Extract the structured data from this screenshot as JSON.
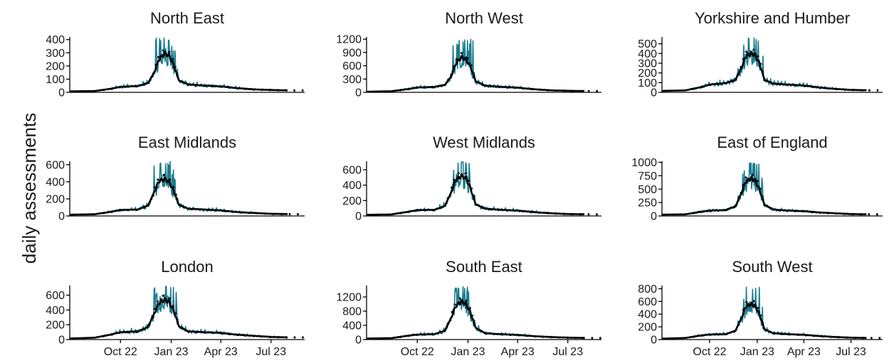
{
  "colors": {
    "raw": "#1b7c8f",
    "smooth": "#000000",
    "predicted": "#000000"
  },
  "chart_data": {
    "type": "line",
    "layout": "facet-grid-3x3",
    "ylabel": "daily assessments",
    "x_axis": {
      "range": [
        "2022-07-01",
        "2023-08-31"
      ],
      "ticks": [
        {
          "date": "2022-10-01",
          "label": "Oct 22"
        },
        {
          "date": "2023-01-01",
          "label": "Jan 23"
        },
        {
          "date": "2023-04-01",
          "label": "Apr 23"
        },
        {
          "date": "2023-07-01",
          "label": "Jul 23"
        }
      ],
      "tick_labels_on_bottom_row_only": true
    },
    "grid": false,
    "panels": [
      {
        "title": "North East",
        "yticks": [
          0,
          100,
          200,
          300,
          400
        ],
        "ylim": [
          0,
          420
        ],
        "trend": [
          [
            "2022-07-01",
            8
          ],
          [
            "2022-08-15",
            10
          ],
          [
            "2022-09-15",
            28
          ],
          [
            "2022-10-01",
            42
          ],
          [
            "2022-11-01",
            48
          ],
          [
            "2022-11-20",
            70
          ],
          [
            "2022-12-01",
            150
          ],
          [
            "2022-12-10",
            250
          ],
          [
            "2022-12-20",
            295
          ],
          [
            "2022-12-28",
            280
          ],
          [
            "2023-01-05",
            210
          ],
          [
            "2023-01-15",
            90
          ],
          [
            "2023-02-01",
            60
          ],
          [
            "2023-03-01",
            52
          ],
          [
            "2023-04-01",
            45
          ],
          [
            "2023-05-01",
            32
          ],
          [
            "2023-06-01",
            22
          ],
          [
            "2023-07-01",
            18
          ],
          [
            "2023-07-31",
            15
          ]
        ],
        "peak": 420,
        "series_end": "2023-07-31",
        "predicted_end": "2023-08-31"
      },
      {
        "title": "North West",
        "yticks": [
          0,
          300,
          600,
          900,
          1200
        ],
        "ylim": [
          0,
          1250
        ],
        "trend": [
          [
            "2022-07-01",
            15
          ],
          [
            "2022-08-15",
            25
          ],
          [
            "2022-09-15",
            75
          ],
          [
            "2022-10-01",
            110
          ],
          [
            "2022-11-01",
            120
          ],
          [
            "2022-11-20",
            170
          ],
          [
            "2022-12-01",
            350
          ],
          [
            "2022-12-10",
            650
          ],
          [
            "2022-12-20",
            790
          ],
          [
            "2022-12-28",
            750
          ],
          [
            "2023-01-05",
            600
          ],
          [
            "2023-01-15",
            250
          ],
          [
            "2023-02-01",
            150
          ],
          [
            "2023-03-01",
            125
          ],
          [
            "2023-04-01",
            105
          ],
          [
            "2023-05-01",
            70
          ],
          [
            "2023-06-01",
            45
          ],
          [
            "2023-07-01",
            35
          ],
          [
            "2023-07-31",
            30
          ]
        ],
        "peak": 1220,
        "series_end": "2023-07-31",
        "predicted_end": "2023-08-31"
      },
      {
        "title": "Yorkshire and Humber",
        "yticks": [
          0,
          100,
          200,
          300,
          400,
          500
        ],
        "ylim": [
          0,
          570
        ],
        "trend": [
          [
            "2022-07-01",
            15
          ],
          [
            "2022-08-15",
            20
          ],
          [
            "2022-09-15",
            55
          ],
          [
            "2022-10-01",
            80
          ],
          [
            "2022-11-01",
            95
          ],
          [
            "2022-11-20",
            130
          ],
          [
            "2022-12-01",
            250
          ],
          [
            "2022-12-10",
            370
          ],
          [
            "2022-12-20",
            400
          ],
          [
            "2022-12-28",
            385
          ],
          [
            "2023-01-05",
            300
          ],
          [
            "2023-01-15",
            130
          ],
          [
            "2023-02-01",
            90
          ],
          [
            "2023-03-01",
            80
          ],
          [
            "2023-04-01",
            70
          ],
          [
            "2023-05-01",
            50
          ],
          [
            "2023-06-01",
            35
          ],
          [
            "2023-07-01",
            25
          ],
          [
            "2023-07-31",
            22
          ]
        ],
        "peak": 560,
        "series_end": "2023-07-31",
        "predicted_end": "2023-08-31"
      },
      {
        "title": "East Midlands",
        "yticks": [
          0,
          200,
          400,
          600
        ],
        "ylim": [
          0,
          640
        ],
        "trend": [
          [
            "2022-07-01",
            15
          ],
          [
            "2022-08-15",
            20
          ],
          [
            "2022-09-15",
            50
          ],
          [
            "2022-10-01",
            70
          ],
          [
            "2022-11-01",
            75
          ],
          [
            "2022-11-20",
            120
          ],
          [
            "2022-12-01",
            280
          ],
          [
            "2022-12-10",
            410
          ],
          [
            "2022-12-20",
            430
          ],
          [
            "2022-12-28",
            400
          ],
          [
            "2023-01-05",
            300
          ],
          [
            "2023-01-15",
            130
          ],
          [
            "2023-02-01",
            85
          ],
          [
            "2023-03-01",
            75
          ],
          [
            "2023-04-01",
            65
          ],
          [
            "2023-05-01",
            45
          ],
          [
            "2023-06-01",
            35
          ],
          [
            "2023-07-01",
            25
          ],
          [
            "2023-07-31",
            22
          ]
        ],
        "peak": 640,
        "series_end": "2023-07-31",
        "predicted_end": "2023-08-31"
      },
      {
        "title": "West Midlands",
        "yticks": [
          0,
          200,
          400,
          600
        ],
        "ylim": [
          0,
          710
        ],
        "trend": [
          [
            "2022-07-01",
            15
          ],
          [
            "2022-08-15",
            20
          ],
          [
            "2022-09-15",
            55
          ],
          [
            "2022-10-01",
            75
          ],
          [
            "2022-11-01",
            80
          ],
          [
            "2022-11-20",
            130
          ],
          [
            "2022-12-01",
            300
          ],
          [
            "2022-12-10",
            470
          ],
          [
            "2022-12-20",
            520
          ],
          [
            "2022-12-28",
            490
          ],
          [
            "2023-01-05",
            370
          ],
          [
            "2023-01-15",
            150
          ],
          [
            "2023-02-01",
            95
          ],
          [
            "2023-03-01",
            80
          ],
          [
            "2023-04-01",
            70
          ],
          [
            "2023-05-01",
            50
          ],
          [
            "2023-06-01",
            35
          ],
          [
            "2023-07-01",
            25
          ],
          [
            "2023-07-31",
            22
          ]
        ],
        "peak": 700,
        "series_end": "2023-07-31",
        "predicted_end": "2023-08-31"
      },
      {
        "title": "East of England",
        "yticks": [
          0,
          250,
          500,
          750,
          1000
        ],
        "ylim": [
          0,
          1020
        ],
        "trend": [
          [
            "2022-07-01",
            25
          ],
          [
            "2022-08-15",
            30
          ],
          [
            "2022-09-15",
            80
          ],
          [
            "2022-10-01",
            100
          ],
          [
            "2022-11-01",
            110
          ],
          [
            "2022-11-20",
            180
          ],
          [
            "2022-12-01",
            420
          ],
          [
            "2022-12-10",
            640
          ],
          [
            "2022-12-20",
            700
          ],
          [
            "2022-12-28",
            660
          ],
          [
            "2023-01-05",
            500
          ],
          [
            "2023-01-15",
            210
          ],
          [
            "2023-02-01",
            120
          ],
          [
            "2023-03-01",
            100
          ],
          [
            "2023-04-01",
            90
          ],
          [
            "2023-05-01",
            65
          ],
          [
            "2023-06-01",
            50
          ],
          [
            "2023-07-01",
            35
          ],
          [
            "2023-07-31",
            30
          ]
        ],
        "peak": 1000,
        "series_end": "2023-07-31",
        "predicted_end": "2023-08-31"
      },
      {
        "title": "London",
        "yticks": [
          0,
          200,
          400,
          600
        ],
        "ylim": [
          0,
          730
        ],
        "trend": [
          [
            "2022-07-01",
            15
          ],
          [
            "2022-08-15",
            25
          ],
          [
            "2022-09-15",
            70
          ],
          [
            "2022-10-01",
            100
          ],
          [
            "2022-11-01",
            110
          ],
          [
            "2022-11-20",
            170
          ],
          [
            "2022-12-01",
            350
          ],
          [
            "2022-12-10",
            500
          ],
          [
            "2022-12-20",
            540
          ],
          [
            "2022-12-28",
            510
          ],
          [
            "2023-01-05",
            400
          ],
          [
            "2023-01-15",
            180
          ],
          [
            "2023-02-01",
            110
          ],
          [
            "2023-03-01",
            100
          ],
          [
            "2023-04-01",
            90
          ],
          [
            "2023-05-01",
            65
          ],
          [
            "2023-06-01",
            50
          ],
          [
            "2023-07-01",
            35
          ],
          [
            "2023-07-31",
            30
          ]
        ],
        "peak": 720,
        "series_end": "2023-07-31",
        "predicted_end": "2023-08-31"
      },
      {
        "title": "South East",
        "yticks": [
          0,
          400,
          800,
          1200
        ],
        "ylim": [
          0,
          1520
        ],
        "trend": [
          [
            "2022-07-01",
            30
          ],
          [
            "2022-08-15",
            40
          ],
          [
            "2022-09-15",
            110
          ],
          [
            "2022-10-01",
            140
          ],
          [
            "2022-11-01",
            150
          ],
          [
            "2022-11-20",
            250
          ],
          [
            "2022-12-01",
            600
          ],
          [
            "2022-12-10",
            950
          ],
          [
            "2022-12-20",
            1070
          ],
          [
            "2022-12-28",
            1000
          ],
          [
            "2023-01-05",
            780
          ],
          [
            "2023-01-15",
            330
          ],
          [
            "2023-02-01",
            180
          ],
          [
            "2023-03-01",
            150
          ],
          [
            "2023-04-01",
            130
          ],
          [
            "2023-05-01",
            95
          ],
          [
            "2023-06-01",
            70
          ],
          [
            "2023-07-01",
            55
          ],
          [
            "2023-07-31",
            45
          ]
        ],
        "peak": 1500,
        "series_end": "2023-07-31",
        "predicted_end": "2023-08-31"
      },
      {
        "title": "South West",
        "yticks": [
          0,
          200,
          400,
          600,
          800
        ],
        "ylim": [
          0,
          850
        ],
        "trend": [
          [
            "2022-07-01",
            15
          ],
          [
            "2022-08-15",
            25
          ],
          [
            "2022-09-15",
            65
          ],
          [
            "2022-10-01",
            80
          ],
          [
            "2022-11-01",
            85
          ],
          [
            "2022-11-20",
            140
          ],
          [
            "2022-12-01",
            330
          ],
          [
            "2022-12-10",
            520
          ],
          [
            "2022-12-20",
            560
          ],
          [
            "2022-12-28",
            530
          ],
          [
            "2023-01-05",
            400
          ],
          [
            "2023-01-15",
            160
          ],
          [
            "2023-02-01",
            100
          ],
          [
            "2023-03-01",
            85
          ],
          [
            "2023-04-01",
            75
          ],
          [
            "2023-05-01",
            55
          ],
          [
            "2023-06-01",
            40
          ],
          [
            "2023-07-01",
            30
          ],
          [
            "2023-07-31",
            25
          ]
        ],
        "peak": 840,
        "series_end": "2023-07-31",
        "predicted_end": "2023-08-31"
      }
    ]
  }
}
